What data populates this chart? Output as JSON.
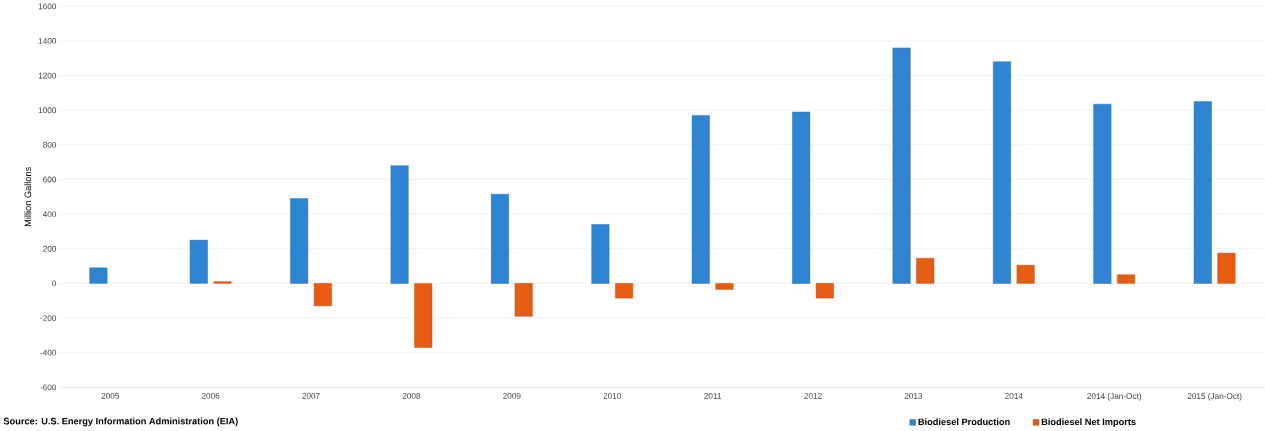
{
  "chart_data": {
    "type": "bar",
    "ylabel": "Million Gallons",
    "categories": [
      "2005",
      "2006",
      "2007",
      "2008",
      "2009",
      "2010",
      "2011",
      "2012",
      "2013",
      "2014",
      "2014 (Jan-Oct)",
      "2015 (Jan-Oct)"
    ],
    "series": [
      {
        "name": "Biodiesel Production",
        "color": "#2e83d3",
        "values": [
          90,
          250,
          490,
          680,
          515,
          340,
          970,
          990,
          1360,
          1280,
          1035,
          1050
        ]
      },
      {
        "name": "Biodiesel Net Imports",
        "color": "#e65c12",
        "values": [
          null,
          10,
          -130,
          -370,
          -190,
          -85,
          -35,
          -85,
          145,
          105,
          50,
          175
        ]
      }
    ],
    "ylim": [
      -600,
      1600
    ],
    "yticks": [
      -600,
      -400,
      -200,
      0,
      200,
      400,
      600,
      800,
      1000,
      1200,
      1400,
      1600
    ],
    "grid": "y",
    "legend": "bottom",
    "annotations": [
      "Source: U.S. Energy Information Administration (EIA)"
    ]
  }
}
